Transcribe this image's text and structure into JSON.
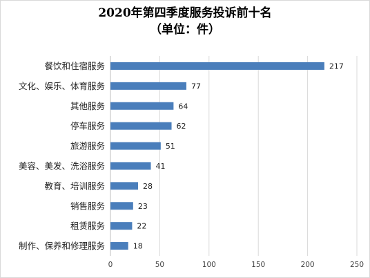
{
  "chart_data": {
    "type": "bar",
    "orientation": "horizontal",
    "title": "2020年第四季度服务投诉前十名",
    "subtitle": "（单位：件）",
    "categories": [
      "餐饮和住宿服务",
      "文化、娱乐、体育服务",
      "其他服务",
      "停车服务",
      "旅游服务",
      "美容、美发、洗浴服务",
      "教育、培训服务",
      "销售服务",
      "租赁服务",
      "制作、保养和修理服务"
    ],
    "values": [
      217,
      77,
      64,
      62,
      51,
      41,
      28,
      23,
      22,
      18
    ],
    "xlim": [
      0,
      250
    ],
    "xticks": [
      "0",
      "50",
      "100",
      "150",
      "200",
      "250"
    ],
    "grid": "vertical",
    "legend": "none",
    "xlabel": "",
    "ylabel": "",
    "bar_color": "#4a7ebb",
    "grid_color": "#d9d9d9"
  }
}
